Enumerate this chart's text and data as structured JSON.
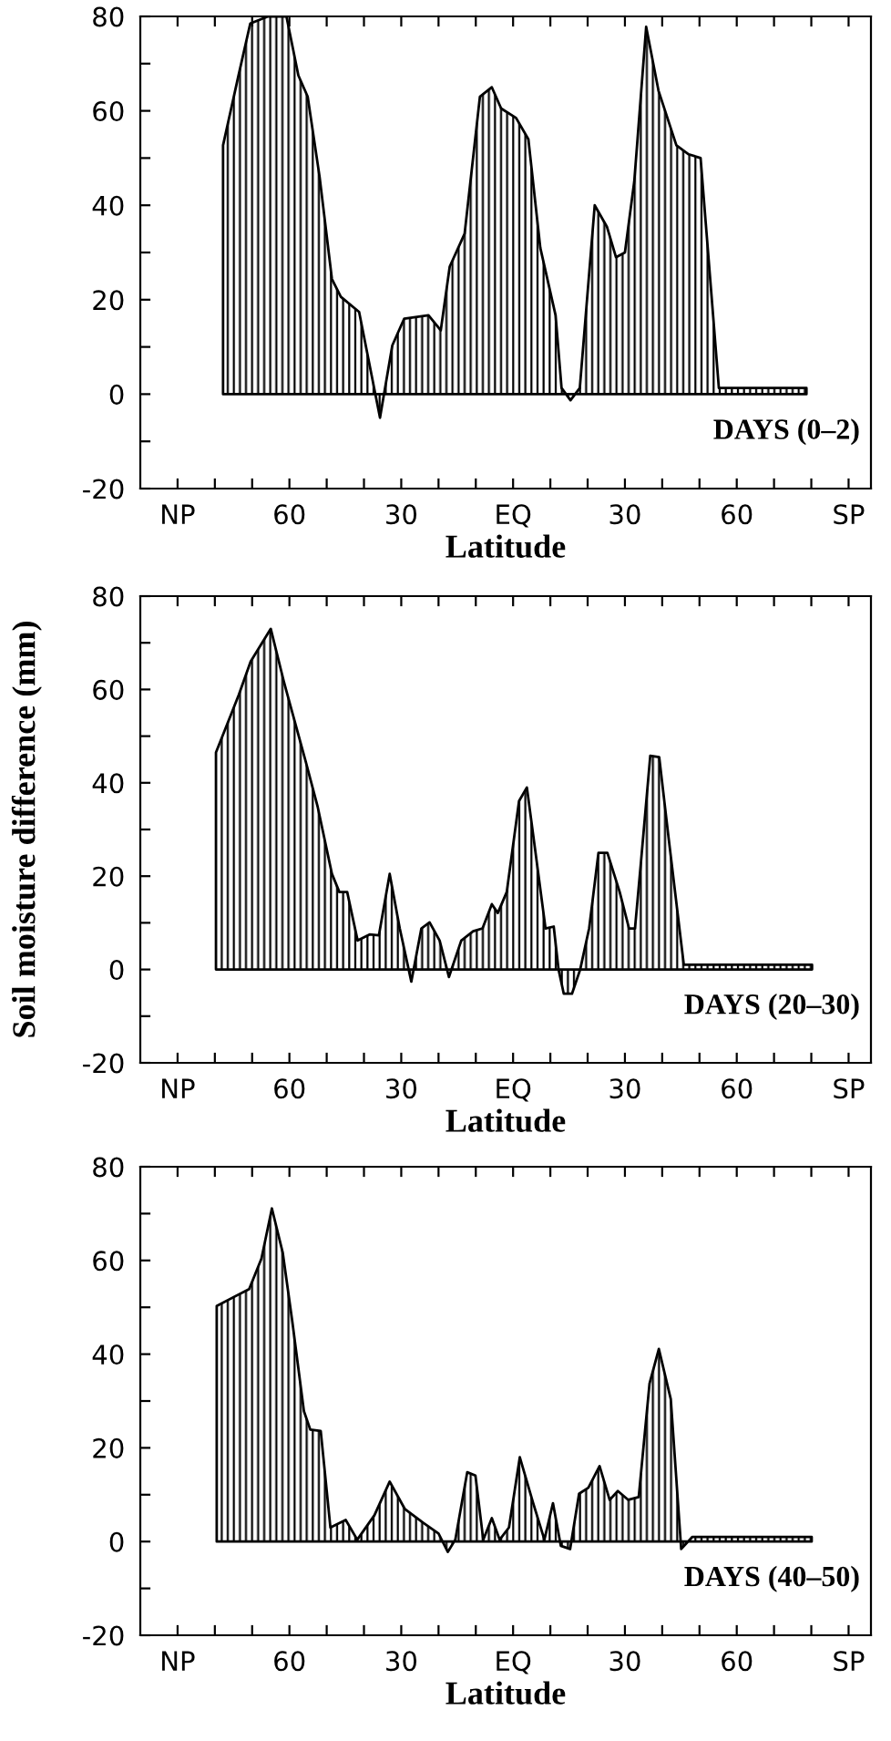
{
  "chart_data": [
    {
      "type": "area",
      "xlabel": "Latitude",
      "annotations": [
        "DAYS (0–2)"
      ],
      "xlim": [
        100,
        -96
      ],
      "ylim": [
        -20,
        80
      ],
      "grid": false,
      "legend": false,
      "xticks": [
        {
          "value": 90,
          "label": "NP"
        },
        {
          "value": 80,
          "label": null
        },
        {
          "value": 70,
          "label": null
        },
        {
          "value": 60,
          "label": "60"
        },
        {
          "value": 50,
          "label": null
        },
        {
          "value": 40,
          "label": null
        },
        {
          "value": 30,
          "label": "30"
        },
        {
          "value": 20,
          "label": null
        },
        {
          "value": 10,
          "label": null
        },
        {
          "value": 0,
          "label": "EQ"
        },
        {
          "value": -10,
          "label": null
        },
        {
          "value": -20,
          "label": null
        },
        {
          "value": -30,
          "label": "30"
        },
        {
          "value": -40,
          "label": null
        },
        {
          "value": -50,
          "label": null
        },
        {
          "value": -60,
          "label": "60"
        },
        {
          "value": -70,
          "label": null
        },
        {
          "value": -80,
          "label": null
        },
        {
          "value": -90,
          "label": "SP"
        }
      ],
      "yticks": [
        -20,
        {
          "value": -10,
          "label": null
        },
        0,
        {
          "value": 10,
          "label": null
        },
        20,
        {
          "value": 30,
          "label": null
        },
        40,
        {
          "value": 50,
          "label": null
        },
        60,
        {
          "value": 70,
          "label": null
        },
        80
      ],
      "series": [
        {
          "color": "#000000",
          "x": [
            77.8,
            73.8,
            70.5,
            65.7,
            60.8,
            57.6,
            55.1,
            51.9,
            48.6,
            46.2,
            41.3,
            35.7,
            32.4,
            29.2,
            22.7,
            19.4,
            17.0,
            13.0,
            8.9,
            5.7,
            3.2,
            -0.8,
            -4.1,
            -7.3,
            -11.4,
            -13.0,
            -15.4,
            -17.9,
            -21.9,
            -25.2,
            -27.6,
            -30.0,
            -32.5,
            -35.7,
            -39.0,
            -43.8,
            -47.1,
            -50.3,
            -55.2,
            -78.7
          ],
          "values": [
            52.7,
            67,
            78.5,
            80,
            80,
            67.5,
            63,
            46,
            24.4,
            20.6,
            17.4,
            -5,
            10.3,
            16,
            16.7,
            13.5,
            27,
            34,
            63,
            65,
            60.5,
            58.5,
            54,
            31,
            16.7,
            1.3,
            -1.3,
            1.3,
            40,
            35.4,
            29,
            30,
            45,
            77.8,
            64.3,
            52.7,
            50.8,
            50,
            1.3,
            1.3
          ]
        }
      ]
    },
    {
      "type": "area",
      "xlabel": "Latitude",
      "ylabel": "Soil moisture difference (mm)",
      "annotations": [
        "DAYS (20–30)"
      ],
      "xlim": [
        100,
        -96
      ],
      "ylim": [
        -20,
        80
      ],
      "grid": false,
      "legend": false,
      "xticks": [
        {
          "value": 90,
          "label": "NP"
        },
        {
          "value": 80,
          "label": null
        },
        {
          "value": 70,
          "label": null
        },
        {
          "value": 60,
          "label": "60"
        },
        {
          "value": 50,
          "label": null
        },
        {
          "value": 40,
          "label": null
        },
        {
          "value": 30,
          "label": "30"
        },
        {
          "value": 20,
          "label": null
        },
        {
          "value": 10,
          "label": null
        },
        {
          "value": 0,
          "label": "EQ"
        },
        {
          "value": -10,
          "label": null
        },
        {
          "value": -20,
          "label": null
        },
        {
          "value": -30,
          "label": "30"
        },
        {
          "value": -40,
          "label": null
        },
        {
          "value": -50,
          "label": null
        },
        {
          "value": -60,
          "label": "60"
        },
        {
          "value": -70,
          "label": null
        },
        {
          "value": -80,
          "label": null
        },
        {
          "value": -90,
          "label": "SP"
        }
      ],
      "yticks": [
        -20,
        {
          "value": -10,
          "label": null
        },
        0,
        {
          "value": 10,
          "label": null
        },
        20,
        {
          "value": 30,
          "label": null
        },
        40,
        {
          "value": 50,
          "label": null
        },
        60,
        {
          "value": 70,
          "label": null
        },
        80
      ],
      "series": [
        {
          "color": "#000000",
          "x": [
            79.7,
            73.6,
            70.4,
            65.0,
            61.4,
            55.6,
            52.4,
            48.6,
            46.6,
            44.5,
            41.7,
            38.5,
            36.0,
            33.1,
            30.4,
            27.3,
            24.6,
            22.4,
            19.7,
            17.2,
            13.9,
            10.7,
            8.2,
            5.7,
            4.1,
            1.7,
            -1.6,
            -3.7,
            -5.7,
            -8.7,
            -10.9,
            -12.2,
            -13.6,
            -15.8,
            -18.0,
            -20.4,
            -22.9,
            -25.3,
            -28.6,
            -31.1,
            -32.7,
            -34.3,
            -36.8,
            -39.2,
            -41.7,
            -45.8,
            -80.2
          ],
          "values": [
            46.5,
            58.8,
            66,
            73,
            61.4,
            44.5,
            34.8,
            20.5,
            16.6,
            16.6,
            6.2,
            7.5,
            7.3,
            20.5,
            8.8,
            -2.6,
            8.8,
            10.1,
            6.2,
            -1.6,
            6.2,
            8.2,
            8.8,
            14,
            12.1,
            16.6,
            36.1,
            39,
            27,
            8.8,
            9.2,
            0,
            -5.2,
            -5.2,
            0,
            8.8,
            25,
            25,
            16.6,
            8.8,
            8.8,
            23,
            45.8,
            45.5,
            28.3,
            1,
            1
          ]
        }
      ]
    },
    {
      "type": "area",
      "xlabel": "Latitude",
      "annotations": [
        "DAYS (40–50)"
      ],
      "xlim": [
        100,
        -96
      ],
      "ylim": [
        -20,
        80
      ],
      "grid": false,
      "legend": false,
      "xticks": [
        {
          "value": 90,
          "label": "NP"
        },
        {
          "value": 80,
          "label": null
        },
        {
          "value": 70,
          "label": null
        },
        {
          "value": 60,
          "label": "60"
        },
        {
          "value": 50,
          "label": null
        },
        {
          "value": 40,
          "label": null
        },
        {
          "value": 30,
          "label": "30"
        },
        {
          "value": 20,
          "label": null
        },
        {
          "value": 10,
          "label": null
        },
        {
          "value": 0,
          "label": "EQ"
        },
        {
          "value": -10,
          "label": null
        },
        {
          "value": -20,
          "label": null
        },
        {
          "value": -30,
          "label": "30"
        },
        {
          "value": -40,
          "label": null
        },
        {
          "value": -50,
          "label": null
        },
        {
          "value": -60,
          "label": "60"
        },
        {
          "value": -70,
          "label": null
        },
        {
          "value": -80,
          "label": null
        },
        {
          "value": -90,
          "label": "SP"
        }
      ],
      "yticks": [
        -20,
        {
          "value": -10,
          "label": null
        },
        0,
        {
          "value": 10,
          "label": null
        },
        20,
        {
          "value": 30,
          "label": null
        },
        40,
        {
          "value": 50,
          "label": null
        },
        60,
        {
          "value": 70,
          "label": null
        },
        80
      ],
      "series": [
        {
          "color": "#000000",
          "x": [
            79.5,
            70.8,
            67.5,
            64.7,
            61.8,
            59.3,
            56.1,
            54.4,
            51.6,
            49.0,
            44.9,
            41.8,
            37.2,
            33.1,
            29.0,
            24.1,
            20.0,
            17.5,
            15.5,
            12.3,
            10.1,
            8.0,
            5.7,
            3.6,
            1.1,
            -1.8,
            -5.4,
            -8.4,
            -10.7,
            -12.8,
            -15.3,
            -17.7,
            -20.2,
            -23.2,
            -25.9,
            -28.1,
            -30.9,
            -33.7,
            -36.6,
            -39.1,
            -42.3,
            -45.1,
            -48.1,
            -80.1
          ],
          "values": [
            50.3,
            53.9,
            60.4,
            71.1,
            61.7,
            47.4,
            27.8,
            23.9,
            23.6,
            3,
            4.6,
            0.4,
            5.6,
            12.8,
            6.9,
            4,
            1.7,
            -2.2,
            0.4,
            14.8,
            14.1,
            0.4,
            5,
            0.4,
            3,
            18,
            8.2,
            0.4,
            8.2,
            -0.9,
            -1.6,
            10.2,
            11.5,
            16.1,
            8.9,
            10.8,
            8.9,
            9.5,
            33.7,
            41.1,
            30.4,
            -1.6,
            1,
            1
          ]
        }
      ]
    }
  ]
}
